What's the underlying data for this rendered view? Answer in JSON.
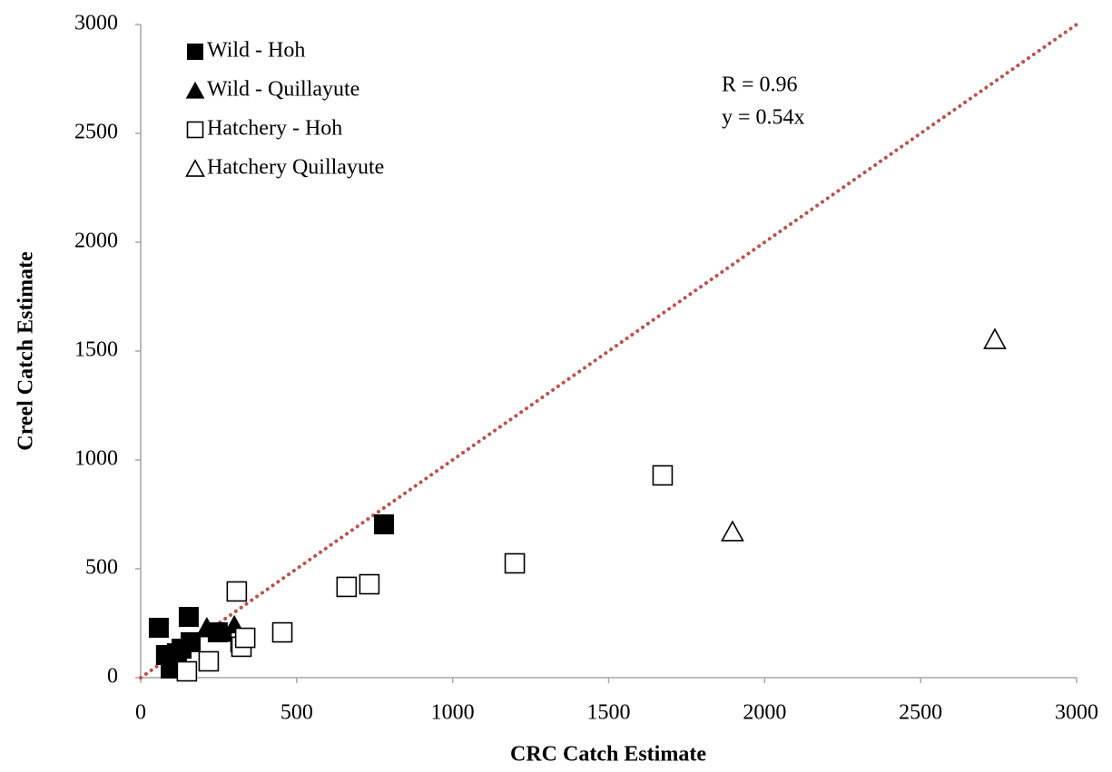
{
  "chart_data": {
    "type": "scatter",
    "x_label": "CRC Catch Estimate",
    "y_label": "Creel Catch Estimate",
    "xlim": [
      0,
      3000
    ],
    "xticks": [
      0,
      500,
      1000,
      1500,
      2000,
      2500,
      3000
    ],
    "ylim": [
      0,
      3000
    ],
    "yticks": [
      0,
      500,
      1000,
      1500,
      2000,
      2500,
      3000
    ],
    "legend": "top-left",
    "annotations": [
      "R = 0.96",
      "y = 0.54x"
    ],
    "reference_line": {
      "x": [
        0,
        3000
      ],
      "values": [
        0,
        3000
      ],
      "color": "#c0504d",
      "style": "dotted"
    },
    "series": [
      {
        "name": "Wild - Hoh",
        "marker": "square",
        "filled": true,
        "color": "#000000",
        "x": [
          58,
          154,
          81,
          96,
          131,
          160,
          247,
          780,
          116
        ],
        "values": [
          229,
          279,
          104,
          42,
          133,
          163,
          208,
          704,
          112
        ]
      },
      {
        "name": "Wild - Quillayute",
        "marker": "triangle",
        "filled": true,
        "color": "#000000",
        "x": [
          212,
          300,
          262
        ],
        "values": [
          229,
          238,
          208
        ]
      },
      {
        "name": "Hatchery - Hoh",
        "marker": "square",
        "filled": false,
        "color": "#000000",
        "x": [
          308,
          454,
          660,
          733,
          1199,
          1673,
          320,
          323,
          335,
          218,
          148
        ],
        "values": [
          396,
          208,
          417,
          429,
          525,
          929,
          163,
          142,
          183,
          75,
          29
        ]
      },
      {
        "name": "Hatchery Quillayute",
        "marker": "triangle",
        "filled": false,
        "color": "#000000",
        "x": [
          1897,
          2738
        ],
        "values": [
          671,
          1554
        ]
      }
    ]
  }
}
